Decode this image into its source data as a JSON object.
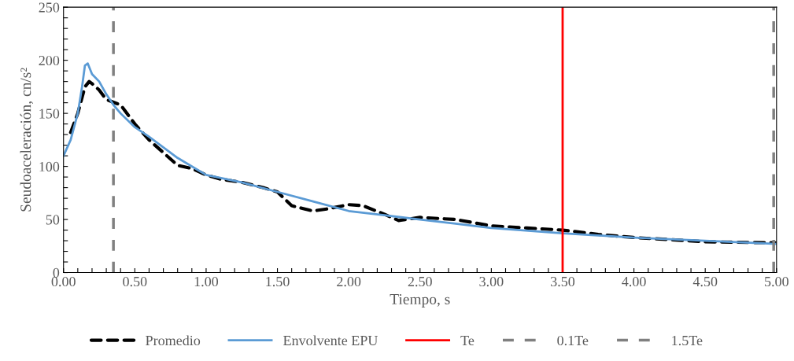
{
  "chart_data": {
    "type": "line",
    "xlabel": "Tiempo, s",
    "ylabel": "Seudoaceleración, cn/s²",
    "series": [
      {
        "name": "Promedio",
        "color": "#000000",
        "line_style": "dashed",
        "x": [
          0.05,
          0.1,
          0.15,
          0.18,
          0.2,
          0.25,
          0.3,
          0.4,
          0.5,
          0.6,
          0.7,
          0.8,
          0.9,
          1.0,
          1.1,
          1.25,
          1.4,
          1.5,
          1.6,
          1.75,
          1.85,
          2.0,
          2.1,
          2.25,
          2.35,
          2.5,
          2.75,
          3.0,
          3.25,
          3.5,
          3.75,
          4.0,
          4.5,
          5.0
        ],
        "values": [
          132,
          150,
          175,
          180,
          178,
          172,
          163,
          158,
          140,
          125,
          113,
          101,
          98,
          92,
          88,
          85,
          80,
          76,
          63,
          58,
          60,
          64,
          63,
          55,
          49,
          52,
          50,
          44,
          42,
          40,
          36,
          33,
          29,
          28
        ]
      },
      {
        "name": "Envolvente EPU",
        "color": "#5b9bd5",
        "line_style": "solid",
        "x": [
          0,
          0.05,
          0.1,
          0.13,
          0.15,
          0.17,
          0.2,
          0.25,
          0.3,
          0.35,
          0.4,
          0.5,
          0.6,
          0.7,
          0.8,
          1.0,
          1.25,
          1.5,
          1.75,
          2.0,
          2.25,
          2.5,
          2.75,
          3.0,
          3.5,
          4.0,
          4.5,
          5.0
        ],
        "values": [
          110,
          125,
          150,
          175,
          195,
          197,
          187,
          180,
          168,
          158,
          150,
          137,
          128,
          118,
          108,
          92,
          85,
          76,
          67,
          58,
          54,
          50,
          46,
          42,
          37,
          33,
          30,
          27
        ]
      }
    ],
    "ref_lines": [
      {
        "axis": "x",
        "value": 3.5,
        "label": "Te",
        "color": "#ff0000",
        "line_style": "solid"
      },
      {
        "axis": "x",
        "value": 0.35,
        "label": "0.1Te",
        "color": "#808080",
        "line_style": "dashed"
      },
      {
        "axis": "x",
        "value": 4.98,
        "label": "1.5Te",
        "color": "#808080",
        "line_style": "dashed"
      }
    ],
    "xlim": [
      0,
      5
    ],
    "ylim": [
      0,
      250
    ],
    "xticks": [
      {
        "value": 0,
        "label": "0.00"
      },
      {
        "value": 0.1,
        "label": null
      },
      {
        "value": 0.2,
        "label": null
      },
      {
        "value": 0.3,
        "label": null
      },
      {
        "value": 0.4,
        "label": null
      },
      {
        "value": 0.5,
        "label": "0.50"
      },
      {
        "value": 0.6,
        "label": null
      },
      {
        "value": 0.7,
        "label": null
      },
      {
        "value": 0.8,
        "label": null
      },
      {
        "value": 0.9,
        "label": null
      },
      {
        "value": 1,
        "label": "1.00"
      },
      {
        "value": 1.1,
        "label": null
      },
      {
        "value": 1.2,
        "label": null
      },
      {
        "value": 1.3,
        "label": null
      },
      {
        "value": 1.4,
        "label": null
      },
      {
        "value": 1.5,
        "label": "1.50"
      },
      {
        "value": 1.6,
        "label": null
      },
      {
        "value": 1.7,
        "label": null
      },
      {
        "value": 1.8,
        "label": null
      },
      {
        "value": 1.9,
        "label": null
      },
      {
        "value": 2,
        "label": "2.00"
      },
      {
        "value": 2.1,
        "label": null
      },
      {
        "value": 2.2,
        "label": null
      },
      {
        "value": 2.3,
        "label": null
      },
      {
        "value": 2.4,
        "label": null
      },
      {
        "value": 2.5,
        "label": "2.50"
      },
      {
        "value": 2.6,
        "label": null
      },
      {
        "value": 2.7,
        "label": null
      },
      {
        "value": 2.8,
        "label": null
      },
      {
        "value": 2.9,
        "label": null
      },
      {
        "value": 3,
        "label": "3.00"
      },
      {
        "value": 3.1,
        "label": null
      },
      {
        "value": 3.2,
        "label": null
      },
      {
        "value": 3.3,
        "label": null
      },
      {
        "value": 3.4,
        "label": null
      },
      {
        "value": 3.5,
        "label": "3.50"
      },
      {
        "value": 3.6,
        "label": null
      },
      {
        "value": 3.7,
        "label": null
      },
      {
        "value": 3.8,
        "label": null
      },
      {
        "value": 3.9,
        "label": null
      },
      {
        "value": 4,
        "label": "4.00"
      },
      {
        "value": 4.1,
        "label": null
      },
      {
        "value": 4.2,
        "label": null
      },
      {
        "value": 4.3,
        "label": null
      },
      {
        "value": 4.4,
        "label": null
      },
      {
        "value": 4.5,
        "label": "4.50"
      },
      {
        "value": 4.6,
        "label": null
      },
      {
        "value": 4.7,
        "label": null
      },
      {
        "value": 4.8,
        "label": null
      },
      {
        "value": 4.9,
        "label": null
      },
      {
        "value": 5,
        "label": "5.00"
      }
    ],
    "yticks": [
      0,
      {
        "value": 10,
        "label": null
      },
      {
        "value": 20,
        "label": null
      },
      {
        "value": 30,
        "label": null
      },
      {
        "value": 40,
        "label": null
      },
      50,
      {
        "value": 60,
        "label": null
      },
      {
        "value": 70,
        "label": null
      },
      {
        "value": 80,
        "label": null
      },
      {
        "value": 90,
        "label": null
      },
      100,
      {
        "value": 110,
        "label": null
      },
      {
        "value": 120,
        "label": null
      },
      {
        "value": 130,
        "label": null
      },
      {
        "value": 140,
        "label": null
      },
      150,
      {
        "value": 160,
        "label": null
      },
      {
        "value": 170,
        "label": null
      },
      {
        "value": 180,
        "label": null
      },
      {
        "value": 190,
        "label": null
      },
      200,
      {
        "value": 210,
        "label": null
      },
      {
        "value": 220,
        "label": null
      },
      {
        "value": 230,
        "label": null
      },
      {
        "value": 240,
        "label": null
      },
      250
    ],
    "grid": false,
    "legend": "bottom"
  }
}
